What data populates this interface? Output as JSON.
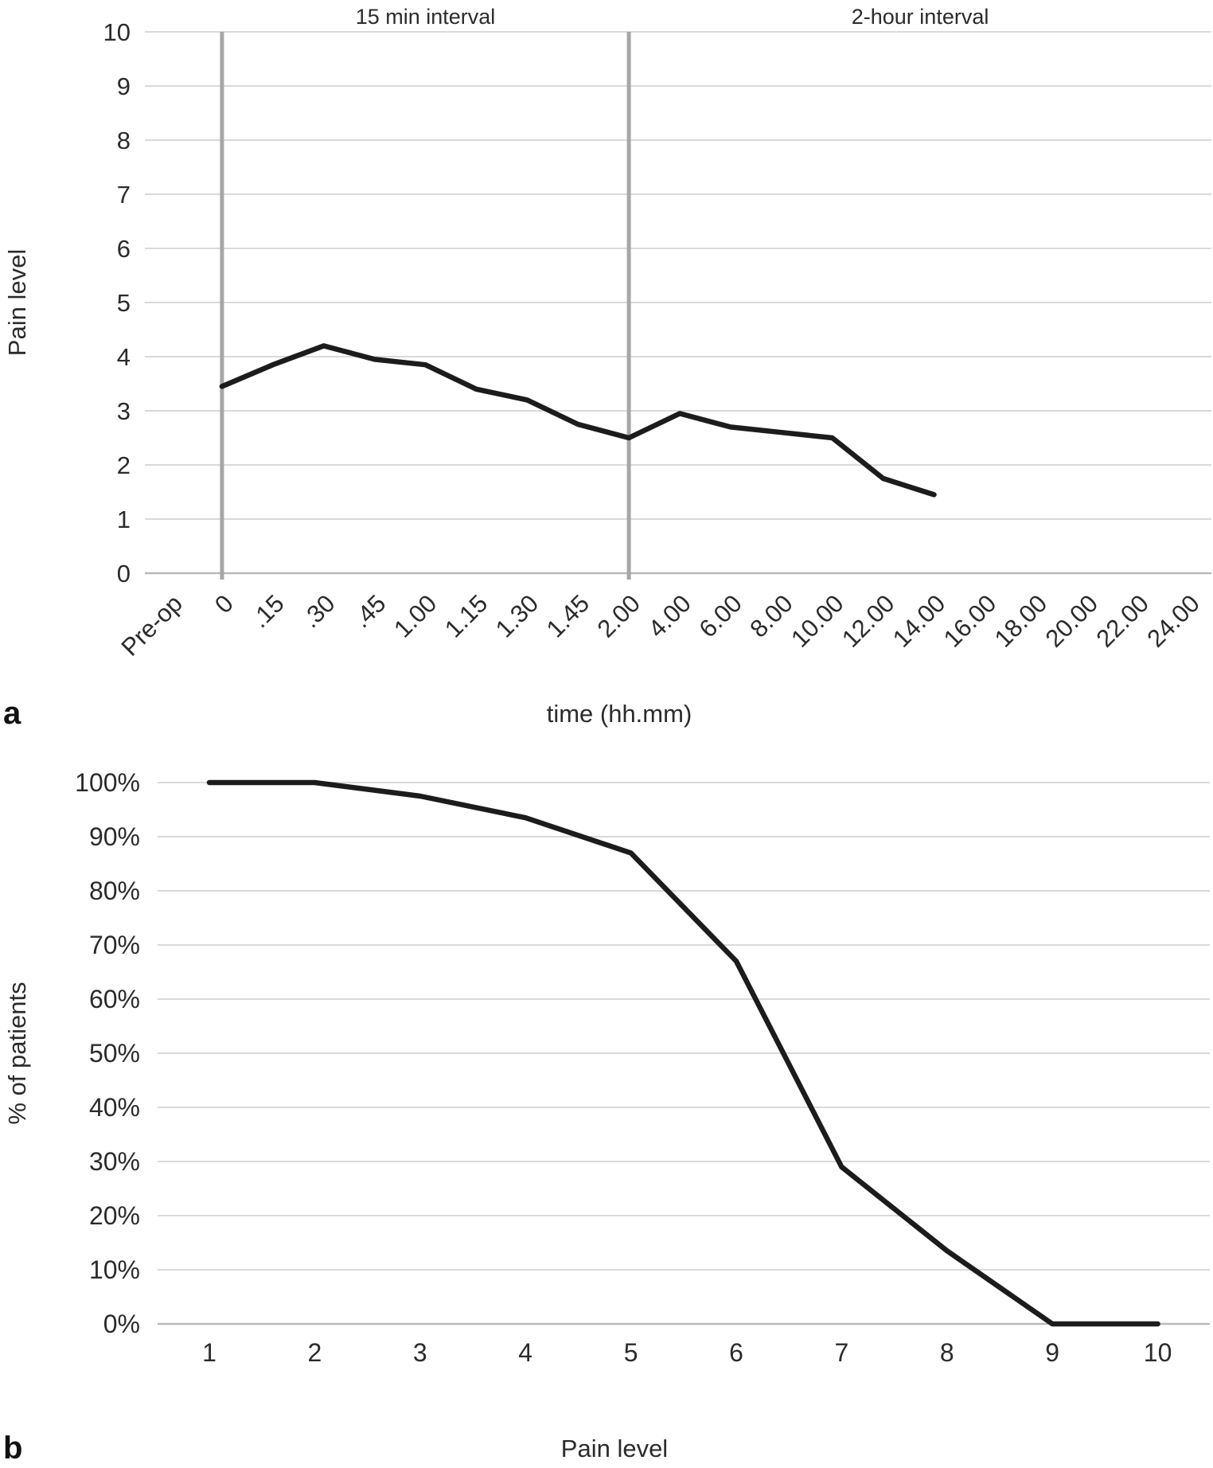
{
  "figure": {
    "panel_a_label": "a",
    "panel_b_label": "b"
  },
  "colors": {
    "series_line": "#1c1c1c",
    "gridline": "#d9d9d9",
    "axis_line": "#b9b9b9",
    "interval_divider_line": "#a6a6a6",
    "label_text": "#2b2b2b"
  },
  "chart_data": [
    {
      "id": "pain-over-time",
      "type": "line",
      "panel": "a",
      "xlabel": "time (hh.mm)",
      "ylabel": "Pain level",
      "ylim": [
        0,
        10
      ],
      "ytick_labels": [
        "0",
        "1",
        "2",
        "3",
        "4",
        "5",
        "6",
        "7",
        "8",
        "9",
        "10"
      ],
      "grid": true,
      "legend": "none",
      "annotations": [
        "15 min interval",
        "2-hour interval"
      ],
      "divider_categories": [
        "0",
        "2.00"
      ],
      "categories": [
        "Pre-op",
        "0",
        ".15",
        ".30",
        ".45",
        "1.00",
        "1.15",
        "1.30",
        "1.45",
        "2.00",
        "4.00",
        "6.00",
        "8.00",
        "10.00",
        "12.00",
        "14.00",
        "16.00",
        "18.00",
        "20.00",
        "22.00",
        "24.00"
      ],
      "values": [
        null,
        3.45,
        3.85,
        4.2,
        3.95,
        3.85,
        3.4,
        3.2,
        2.75,
        2.5,
        2.95,
        2.7,
        2.6,
        2.5,
        1.75,
        1.45,
        null,
        null,
        null,
        null,
        null
      ]
    },
    {
      "id": "patients-by-pain-level",
      "type": "line",
      "panel": "b",
      "xlabel": "Pain level",
      "ylabel": "% of patients",
      "ylim": [
        0,
        100
      ],
      "ytick_labels": [
        "0%",
        "10%",
        "20%",
        "30%",
        "40%",
        "50%",
        "60%",
        "70%",
        "80%",
        "90%",
        "100%"
      ],
      "grid": true,
      "legend": "none",
      "categories": [
        "1",
        "2",
        "3",
        "4",
        "5",
        "6",
        "7",
        "8",
        "9",
        "10"
      ],
      "values": [
        100,
        100,
        97.5,
        93.5,
        87,
        67,
        29,
        13.5,
        0,
        0
      ]
    }
  ]
}
